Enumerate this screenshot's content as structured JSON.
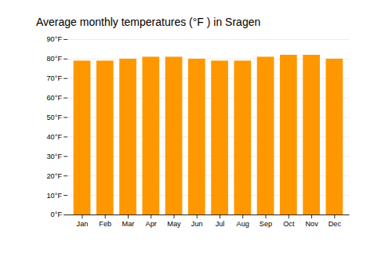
{
  "chart_data": {
    "type": "bar",
    "title": "Average monthly temperatures (°F ) in Sragen",
    "categories": [
      "Jan",
      "Feb",
      "Mar",
      "Apr",
      "May",
      "Jun",
      "Jul",
      "Aug",
      "Sep",
      "Oct",
      "Nov",
      "Dec"
    ],
    "values": [
      79,
      79,
      80,
      81,
      81,
      80,
      79,
      79,
      81,
      82,
      82,
      80
    ],
    "color": "#FF9800",
    "ylim": [
      0,
      90
    ],
    "yticks": [
      {
        "value": 0,
        "label": "0°F"
      },
      {
        "value": 10,
        "label": "10°F"
      },
      {
        "value": 20,
        "label": "20°F"
      },
      {
        "value": 30,
        "label": "30°F"
      },
      {
        "value": 40,
        "label": "40°F"
      },
      {
        "value": 50,
        "label": "50°F"
      },
      {
        "value": 60,
        "label": "60°F"
      },
      {
        "value": 70,
        "label": "70°F"
      },
      {
        "value": 80,
        "label": "80°F"
      },
      {
        "value": 90,
        "label": "90°F"
      }
    ],
    "grid": true
  }
}
